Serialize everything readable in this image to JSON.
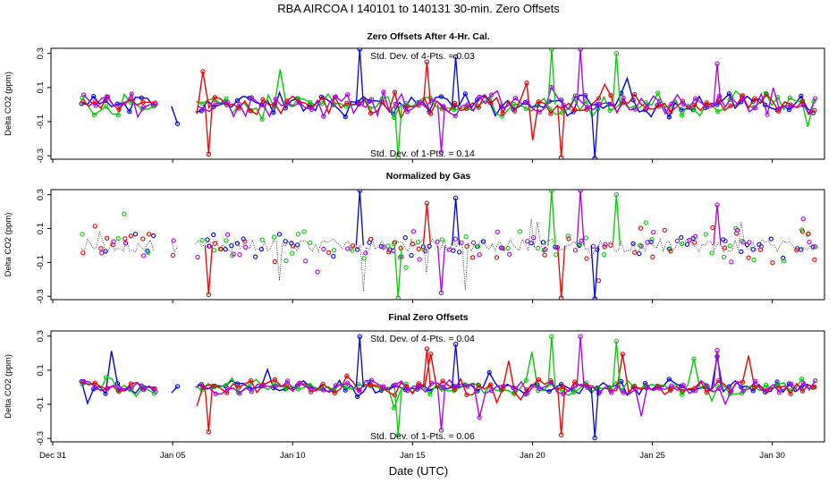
{
  "chart_data": {
    "type": "line",
    "title": "RBA   AIRCOA I   140101 to 140131   30-min. Zero Offsets",
    "xlabel": "Date (UTC)",
    "x_range_days": [
      0,
      32.1
    ],
    "x_ticks": [
      {
        "day": 0,
        "label": "Dec 31"
      },
      {
        "day": 5,
        "label": "Jan 05"
      },
      {
        "day": 10,
        "label": "Jan 10"
      },
      {
        "day": 15,
        "label": "Jan 15"
      },
      {
        "day": 20,
        "label": "Jan 20"
      },
      {
        "day": 25,
        "label": "Jan 25"
      },
      {
        "day": 30,
        "label": "Jan 30"
      }
    ],
    "series_colors": {
      "s1": "#0000ee",
      "s2": "#00cc00",
      "s3": "#ee0000",
      "s4": "#aa00ee",
      "ref": "#000000"
    },
    "panels": [
      {
        "title": "Zero Offsets After 4-Hr. Cal.",
        "ylabel": "Delta CO2 (ppm)",
        "ylim": [
          -0.32,
          0.33
        ],
        "y_ticks": [
          0.3,
          0.1,
          -0.1,
          -0.3
        ],
        "y_tick_labels": [
          "0.3",
          "0.1",
          "-0.1",
          "-0.3"
        ],
        "stat_top": "Std. Dev. of 4-Pts. =  0.03",
        "stat_bottom": "Std. Dev. of 1-Pts. =  0.14",
        "spread": 0.055,
        "center": 0.0,
        "show_reference_line": false
      },
      {
        "title": "Normalized by Gas",
        "ylabel": "Delta CO2 (ppm)",
        "ylim": [
          -0.32,
          0.33
        ],
        "y_ticks": [
          0.3,
          0.1,
          -0.1,
          -0.3
        ],
        "y_tick_labels": [
          "0.3",
          "0.1",
          "-0.1",
          "-0.3"
        ],
        "stat_top": "",
        "stat_bottom": "",
        "spread": 0.08,
        "center": 0.0,
        "show_reference_line": true
      },
      {
        "title": "Final Zero Offsets",
        "ylabel": "Delta CO2 (ppm)",
        "ylim": [
          -0.32,
          0.33
        ],
        "y_ticks": [
          0.3,
          0.1,
          -0.1,
          -0.3
        ],
        "y_tick_labels": [
          "0.3",
          "0.1",
          "-0.1",
          "-0.3"
        ],
        "stat_top": "Std. Dev. of 4-Pts. =  0.04",
        "stat_bottom": "Std. Dev. of 1-Pts. =  0.06",
        "spread": 0.035,
        "center": 0.0,
        "show_reference_line": false
      }
    ],
    "data_gaps_days": [
      [
        4.3,
        4.9
      ],
      [
        5.2,
        5.9
      ]
    ],
    "data_start_day": 1.2,
    "data_end_day": 31.8,
    "outlier_events": [
      {
        "day": 12.8,
        "value": 0.33
      },
      {
        "day": 14.4,
        "value": -0.31
      },
      {
        "day": 15.6,
        "value": 0.25
      },
      {
        "day": 16.2,
        "value": -0.28
      },
      {
        "day": 16.8,
        "value": 0.28
      },
      {
        "day": 20.8,
        "value": 0.33
      },
      {
        "day": 21.2,
        "value": -0.31
      },
      {
        "day": 22.0,
        "value": 0.33
      },
      {
        "day": 22.6,
        "value": -0.33
      },
      {
        "day": 23.5,
        "value": 0.3
      },
      {
        "day": 6.5,
        "value": -0.29
      },
      {
        "day": 27.7,
        "value": 0.24
      }
    ]
  }
}
